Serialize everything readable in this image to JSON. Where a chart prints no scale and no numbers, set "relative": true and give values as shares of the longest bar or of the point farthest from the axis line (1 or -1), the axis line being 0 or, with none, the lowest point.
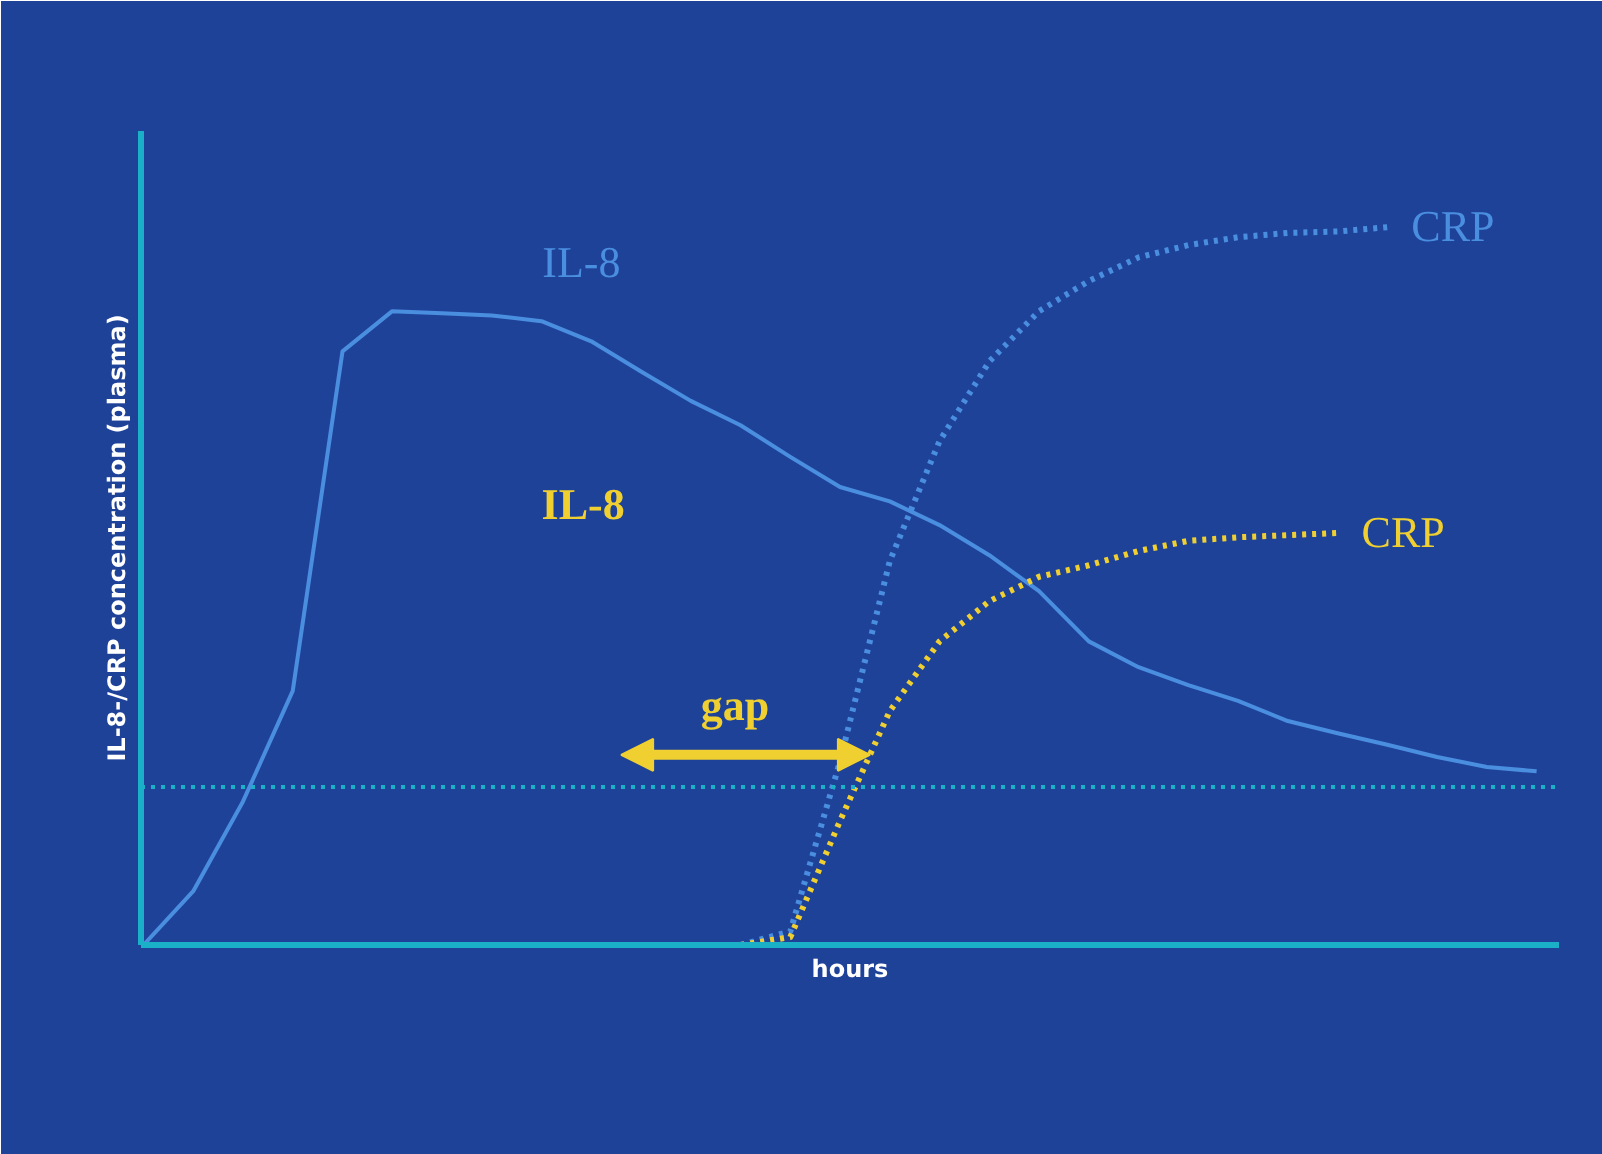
{
  "chart_data": {
    "type": "line",
    "relative": true,
    "xlabel": "hours",
    "ylabel": "IL-8-/CRP concentration (plasma)",
    "categories": [
      null,
      null,
      null,
      null,
      null,
      null,
      null,
      null,
      null,
      null,
      null,
      null,
      null,
      null,
      null,
      null,
      null,
      null,
      null,
      null,
      null,
      null,
      null,
      null,
      null,
      null,
      null,
      null,
      null
    ],
    "series": [
      {
        "name": "IL-8",
        "color": "#4a8ee0",
        "line_style": "solid",
        "values": [
          0,
          0.075,
          0.2,
          0.354,
          0.827,
          0.883,
          0.88,
          0.877,
          0.869,
          0.841,
          0.799,
          0.758,
          0.724,
          0.68,
          0.638,
          0.618,
          0.585,
          0.543,
          0.493,
          0.423,
          0.387,
          0.362,
          0.34,
          0.312,
          0.295,
          0.279,
          0.262,
          0.248,
          0.242
        ]
      },
      {
        "name": "CRP",
        "color": "#4a8ee0",
        "line_style": "dotted",
        "values": [
          null,
          null,
          null,
          null,
          null,
          null,
          null,
          null,
          null,
          null,
          null,
          null,
          0,
          0.019,
          0.256,
          0.535,
          0.702,
          0.813,
          0.883,
          0.925,
          0.958,
          0.975,
          0.986,
          0.992,
          0.994,
          1,
          null,
          null,
          null
        ]
      },
      {
        "name": "CRP",
        "color": "#f0d030",
        "line_style": "dotted",
        "values": [
          null,
          null,
          null,
          null,
          null,
          null,
          null,
          null,
          null,
          null,
          null,
          null,
          0,
          0.011,
          0.173,
          0.326,
          0.423,
          0.479,
          0.513,
          0.529,
          0.549,
          0.563,
          0.568,
          0.571,
          0.574,
          null,
          null,
          null,
          null
        ]
      }
    ],
    "ref_lines": [
      {
        "axis": "y",
        "value": 0.22,
        "color": "#1ab0c8",
        "line_style": "dotted"
      }
    ],
    "annotations": [
      "IL-8",
      "gap"
    ],
    "marker": "none"
  }
}
